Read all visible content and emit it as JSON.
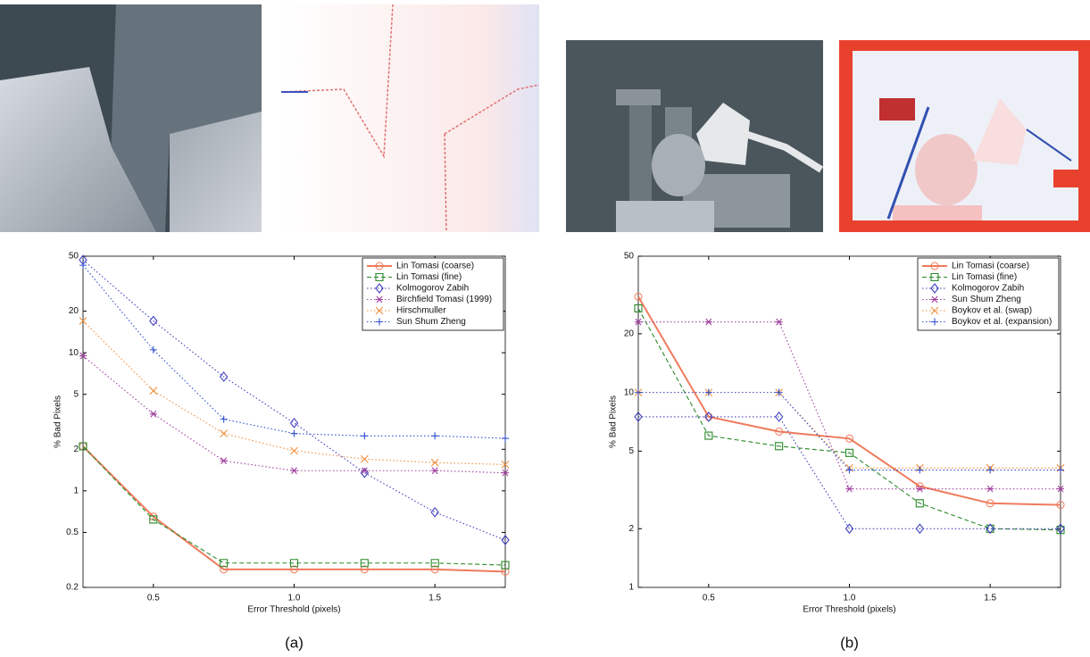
{
  "chart_data": [
    {
      "type": "line",
      "caption": "(a)",
      "x_label": "Error Threshold (pixels)",
      "y_label": "% Bad Pixels",
      "log_y": true,
      "grid": false,
      "legend": "upper right",
      "xlim": [
        0.25,
        1.75
      ],
      "xticks": [
        0.5,
        {
          "value": 1,
          "label": "1.0"
        },
        1.5
      ],
      "ylim": [
        0.2,
        50
      ],
      "yticks": [
        0.2,
        0.5,
        1,
        2,
        5,
        10,
        20,
        50
      ],
      "x": [
        0.25,
        0.5,
        0.75,
        1.0,
        1.25,
        1.5,
        1.75
      ],
      "series": [
        {
          "name": "Lin Tomasi (coarse)",
          "color": "#f07a5c",
          "marker": "circle",
          "dash": "solid",
          "values": [
            2.1,
            0.65,
            0.27,
            0.27,
            0.27,
            0.27,
            0.26
          ]
        },
        {
          "name": "Lin Tomasi (fine)",
          "color": "#2a8a2a",
          "marker": "square",
          "dash": "dashed",
          "values": [
            2.1,
            0.62,
            0.3,
            0.3,
            0.3,
            0.3,
            0.29
          ]
        },
        {
          "name": "Kolmogorov Zabih",
          "color": "#4040c0",
          "marker": "diamond",
          "dash": "dotted",
          "values": [
            47,
            17,
            6.7,
            3.1,
            1.35,
            0.7,
            0.44
          ]
        },
        {
          "name": "Birchfield Tomasi (1999)",
          "color": "#a040a0",
          "marker": "star",
          "dash": "dotted",
          "values": [
            9.5,
            3.6,
            1.65,
            1.4,
            1.4,
            1.4,
            1.35
          ]
        },
        {
          "name": "Hirschmuller",
          "color": "#f09040",
          "marker": "x",
          "dash": "dotted",
          "values": [
            17,
            5.3,
            2.6,
            1.95,
            1.7,
            1.6,
            1.55
          ]
        },
        {
          "name": "Sun Shum Zheng",
          "color": "#3050d0",
          "marker": "plus",
          "dash": "dotted",
          "values": [
            43,
            10.5,
            3.3,
            2.6,
            2.5,
            2.5,
            2.4
          ]
        }
      ]
    },
    {
      "type": "line",
      "caption": "(b)",
      "x_label": "Error Threshold (pixels)",
      "y_label": "% Bad Pixels",
      "log_y": true,
      "grid": false,
      "legend": "upper right",
      "xlim": [
        0.25,
        1.75
      ],
      "xticks": [
        0.5,
        {
          "value": 1,
          "label": "1.0"
        },
        1.5
      ],
      "ylim": [
        1,
        50
      ],
      "yticks": [
        1,
        2,
        5,
        10,
        20,
        50
      ],
      "x": [
        0.25,
        0.5,
        0.75,
        1.0,
        1.25,
        1.5,
        1.75
      ],
      "series": [
        {
          "name": "Lin Tomasi (coarse)",
          "color": "#f07a5c",
          "marker": "circle",
          "dash": "solid",
          "values": [
            31,
            7.5,
            6.3,
            5.8,
            3.3,
            2.7,
            2.65
          ]
        },
        {
          "name": "Lin Tomasi (fine)",
          "color": "#2a8a2a",
          "marker": "square",
          "dash": "dashed",
          "values": [
            27,
            6.0,
            5.3,
            4.9,
            2.7,
            2.0,
            1.97
          ]
        },
        {
          "name": "Kolmogorov Zabih",
          "color": "#4040c0",
          "marker": "diamond",
          "dash": "dotted",
          "values": [
            7.5,
            7.5,
            7.5,
            2.0,
            2.0,
            2.0,
            2.0
          ]
        },
        {
          "name": "Sun Shum Zheng",
          "color": "#a040a0",
          "marker": "star",
          "dash": "dotted",
          "values": [
            23,
            23,
            23,
            3.2,
            3.2,
            3.2,
            3.2
          ]
        },
        {
          "name": "Boykov et al. (swap)",
          "color": "#f09040",
          "marker": "x",
          "dash": "dotted",
          "values": [
            10,
            10,
            10,
            4.1,
            4.1,
            4.1,
            4.1
          ]
        },
        {
          "name": "Boykov et al. (expansion)",
          "color": "#3050d0",
          "marker": "plus",
          "dash": "dotted",
          "values": [
            10,
            10,
            10,
            4.0,
            4.0,
            4.0,
            4.0
          ]
        }
      ]
    }
  ]
}
